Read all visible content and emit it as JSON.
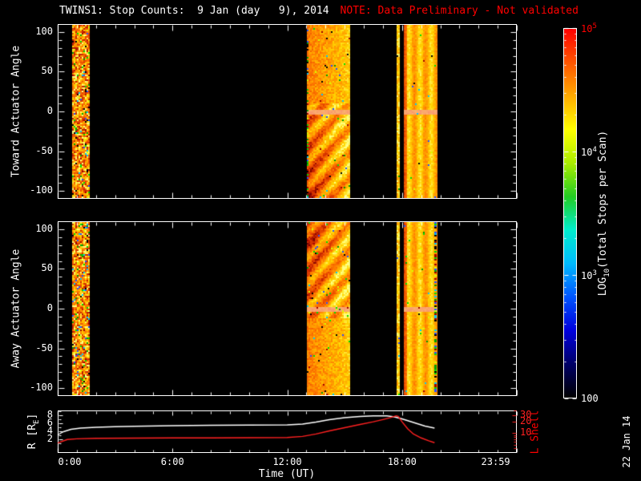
{
  "header": {
    "title": "TWINS1: Stop Counts:  9 Jan (day   9), 2014",
    "note": "NOTE: Data Preliminary - Not validated"
  },
  "date_stamp": "22 Jan 14",
  "colors": {
    "background": "#000000",
    "foreground": "#ffffff",
    "alert": "#ff0000",
    "lshell_line": "#ff2020",
    "r_line": "#ffffff"
  },
  "xaxis": {
    "label": "Time (UT)",
    "range_hours": [
      0,
      24
    ],
    "major_every_hours": 6,
    "minor_every_hours": 1,
    "ticks": [
      {
        "hour": 0,
        "label": "0:00",
        "dx": 15
      },
      {
        "hour": 6,
        "label": "6:00",
        "dx": 0
      },
      {
        "hour": 12,
        "label": "12:00",
        "dx": 0
      },
      {
        "hour": 18,
        "label": "18:00",
        "dx": 0
      },
      {
        "hour": 23.983,
        "label": "23:59",
        "dx": -26
      }
    ]
  },
  "colorbar": {
    "title_prefix": "LOG",
    "title_sub": "10",
    "title_suffix": "(Total Stops per Scan)",
    "scale": "log",
    "range": [
      100,
      100000
    ],
    "ticks": [
      {
        "label_base": "10",
        "label_exp": "5",
        "frac": 1.0,
        "color": "#ff0000"
      },
      {
        "label_base": "10",
        "label_exp": "4",
        "frac": 0.6667,
        "color": "#ffffff"
      },
      {
        "label_base": "10",
        "label_exp": "3",
        "frac": 0.3333,
        "color": "#ffffff"
      },
      {
        "label_base": "100",
        "label_exp": "",
        "frac": 0.0,
        "color": "#ffffff"
      }
    ],
    "gradient_bottom_to_top": [
      "#000000",
      "#000066",
      "#0000dd",
      "#0055ff",
      "#00bbff",
      "#00eecc",
      "#22cc22",
      "#aaee00",
      "#ffff00",
      "#ffaa00",
      "#ff5500",
      "#ff0000"
    ]
  },
  "chart_data": [
    {
      "type": "heatmap",
      "name": "toward_actuator_spectrogram",
      "ylabel": "Toward Actuator Angle",
      "ylim": [
        -100,
        100
      ],
      "yticks": [
        100,
        50,
        0,
        -50,
        -100
      ],
      "x_unit": "hours UT",
      "time_blocks": [
        {
          "start_hour": 0.7,
          "end_hour": 1.6,
          "style": "noisy",
          "speck": 0.1,
          "band": false
        },
        {
          "start_hour": 13.05,
          "end_hour": 15.3,
          "style": "wavy",
          "wave_pos": "lower",
          "speck": 0.02,
          "band": true,
          "edge_specks_left": true
        },
        {
          "start_hour": 17.72,
          "end_hour": 17.92,
          "style": "thin",
          "speck": 0.02,
          "band": false
        },
        {
          "start_hour": 18.1,
          "end_hour": 19.85,
          "style": "smooth",
          "speck": 0.008,
          "band": true
        }
      ]
    },
    {
      "type": "heatmap",
      "name": "away_actuator_spectrogram",
      "ylabel": "Away Actuator Angle",
      "ylim": [
        -100,
        100
      ],
      "yticks": [
        100,
        50,
        0,
        -50,
        -100
      ],
      "x_unit": "hours UT",
      "time_blocks": [
        {
          "start_hour": 0.7,
          "end_hour": 1.6,
          "style": "noisy",
          "speck": 0.12,
          "band": false
        },
        {
          "start_hour": 13.05,
          "end_hour": 15.3,
          "style": "wavy",
          "wave_pos": "upper",
          "speck": 0.03,
          "band": true
        },
        {
          "start_hour": 17.72,
          "end_hour": 17.92,
          "style": "thin",
          "speck": 0.02,
          "band": false
        },
        {
          "start_hour": 18.1,
          "end_hour": 19.85,
          "style": "smooth",
          "speck": 0.01,
          "band": true,
          "edge_specks": true
        }
      ]
    },
    {
      "type": "line",
      "name": "orbit_parameters",
      "ylabel_left_parts": {
        "prefix": "R [R",
        "sub": "E",
        "suffix": "]"
      },
      "ylabel_right": "L Shell",
      "yticks_left": [
        8,
        6,
        4,
        2
      ],
      "yticks_right": [
        30,
        20,
        10
      ],
      "scale_left": {
        "type": "linear",
        "min": -1.4,
        "max": 9.2
      },
      "scale_right": {
        "type": "log",
        "min": 3,
        "max": 40
      },
      "series": [
        {
          "name": "R_RE",
          "color": "#ffffff",
          "axis": "left",
          "points": [
            [
              0,
              3.1
            ],
            [
              0.3,
              3.9
            ],
            [
              0.7,
              4.5
            ],
            [
              1.2,
              4.8
            ],
            [
              2,
              5.0
            ],
            [
              3,
              5.15
            ],
            [
              4,
              5.25
            ],
            [
              6,
              5.4
            ],
            [
              8,
              5.5
            ],
            [
              10,
              5.55
            ],
            [
              12,
              5.6
            ],
            [
              12.8,
              5.8
            ],
            [
              13.5,
              6.3
            ],
            [
              14.2,
              6.9
            ],
            [
              15,
              7.4
            ],
            [
              15.8,
              7.7
            ],
            [
              16.5,
              7.85
            ],
            [
              17.2,
              7.85
            ],
            [
              17.6,
              7.6
            ],
            [
              18,
              7.1
            ],
            [
              18.4,
              6.5
            ],
            [
              18.8,
              5.9
            ],
            [
              19.2,
              5.3
            ],
            [
              19.7,
              4.8
            ]
          ]
        },
        {
          "name": "L_Shell",
          "color": "#ff2020",
          "axis": "right",
          "points": [
            [
              0,
              5.5
            ],
            [
              0.5,
              6.8
            ],
            [
              1,
              7.1
            ],
            [
              2,
              7.3
            ],
            [
              4,
              7.4
            ],
            [
              6,
              7.5
            ],
            [
              8,
              7.5
            ],
            [
              10,
              7.6
            ],
            [
              12,
              7.7
            ],
            [
              12.8,
              8.2
            ],
            [
              13.5,
              9.5
            ],
            [
              14.2,
              11.5
            ],
            [
              15,
              14
            ],
            [
              15.8,
              17
            ],
            [
              16.5,
              20
            ],
            [
              17.0,
              23
            ],
            [
              17.4,
              26
            ],
            [
              17.7,
              29
            ],
            [
              17.8,
              28
            ],
            [
              18.0,
              20
            ],
            [
              18.3,
              13
            ],
            [
              18.6,
              9.5
            ],
            [
              19.0,
              7.5
            ],
            [
              19.4,
              6.3
            ],
            [
              19.7,
              5.6
            ]
          ]
        }
      ]
    }
  ]
}
